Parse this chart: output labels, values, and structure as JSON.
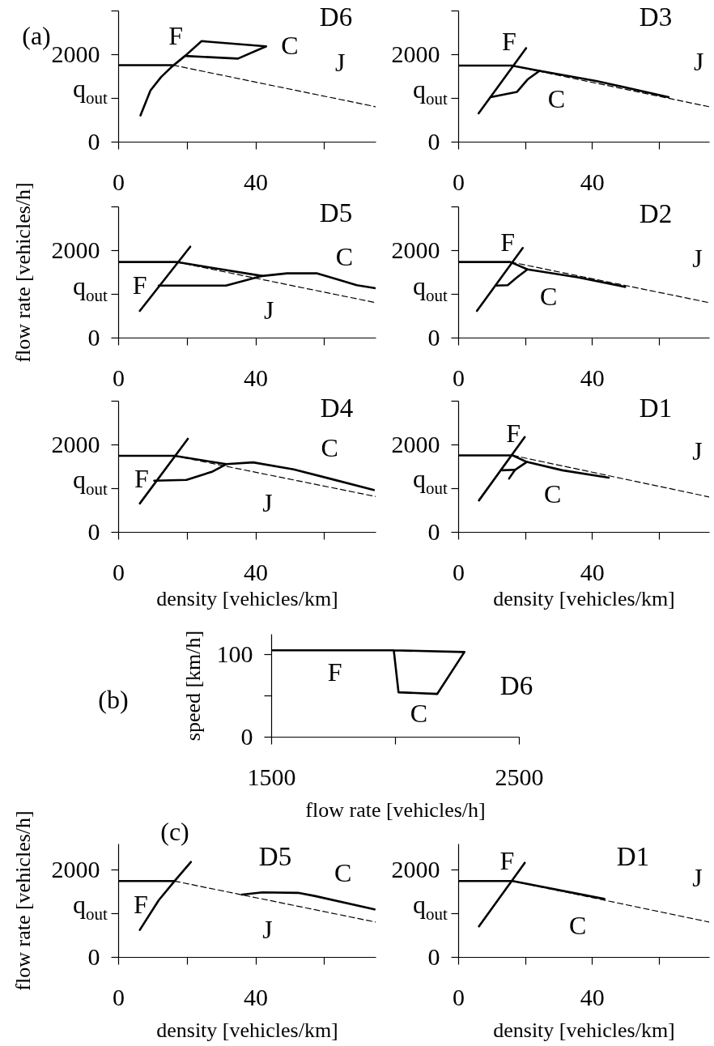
{
  "chart_data": [
    {
      "type": "line",
      "title": "D6",
      "xlim": [
        0,
        75
      ],
      "xticks": [
        0,
        {
          "value": 20,
          "label": null
        },
        40,
        {
          "value": 60,
          "label": null
        }
      ],
      "ylim": [
        0,
        3000
      ],
      "yticks": [
        0,
        {
          "value": 1000,
          "label": null
        },
        2000,
        {
          "value": 3000,
          "label": null
        }
      ],
      "series": [
        {
          "color": "#000000",
          "x": [
            6.5,
            9.4,
            12.5,
            15.7,
            19.6,
            24.3,
            43.1,
            34.9,
            19.6
          ],
          "values": [
            600,
            1170,
            1480,
            1720,
            1970,
            2300,
            2180,
            1900,
            1960
          ]
        },
        {
          "color": "#000000",
          "x": [
            16,
            75
          ],
          "values": [
            1750,
            800
          ],
          "line_style": "dashed"
        },
        {
          "color": "#000000",
          "x": [
            0,
            15.7
          ],
          "values": [
            1750,
            1750
          ]
        }
      ],
      "annotations": [
        "F",
        "C",
        "J",
        "q$_{out}$",
        "(a)"
      ]
    },
    {
      "type": "line",
      "title": "D3",
      "xlim": [
        0,
        75
      ],
      "xticks": [
        0,
        {
          "value": 20,
          "label": null
        },
        40,
        {
          "value": 60,
          "label": null
        }
      ],
      "ylim": [
        0,
        3000
      ],
      "yticks": [
        0,
        {
          "value": 1000,
          "label": null
        },
        2000,
        {
          "value": 3000,
          "label": null
        }
      ],
      "series": [
        {
          "color": "#000000",
          "x": [
            6.1,
            20.3
          ],
          "values": [
            650,
            2140
          ]
        },
        {
          "color": "#000000",
          "x": [
            0,
            16,
            24.3,
            41.2,
            62.9
          ],
          "values": [
            1740,
            1740,
            1620,
            1390,
            1020
          ]
        },
        {
          "color": "#000000",
          "x": [
            24.3,
            20.7,
            17.6,
            9.7
          ],
          "values": [
            1620,
            1420,
            1140,
            1020
          ]
        },
        {
          "color": "#000000",
          "x": [
            16,
            75
          ],
          "values": [
            1740,
            800
          ],
          "line_style": "dashed"
        }
      ],
      "annotations": [
        "F",
        "C",
        "J",
        "q$_{out}$"
      ]
    },
    {
      "type": "line",
      "title": "D5",
      "ylabel": "flow rate [vehicles/h]",
      "xlim": [
        0,
        75
      ],
      "xticks": [
        0,
        {
          "value": 20,
          "label": null
        },
        40,
        {
          "value": 60,
          "label": null
        }
      ],
      "ylim": [
        0,
        3000
      ],
      "yticks": [
        0,
        {
          "value": 1000,
          "label": null
        },
        2000,
        {
          "value": 3000,
          "label": null
        }
      ],
      "series": [
        {
          "color": "#000000",
          "x": [
            6.3,
            21
          ],
          "values": [
            610,
            2080
          ]
        },
        {
          "color": "#000000",
          "x": [
            0,
            16.9,
            42,
            49.2,
            57.8,
            64,
            69.5,
            75
          ],
          "values": [
            1730,
            1730,
            1410,
            1470,
            1470,
            1330,
            1200,
            1130
          ]
        },
        {
          "color": "#000000",
          "x": [
            11.8,
            31.4,
            42
          ],
          "values": [
            1190,
            1190,
            1410
          ]
        },
        {
          "color": "#000000",
          "x": [
            16.9,
            75
          ],
          "values": [
            1730,
            800
          ],
          "line_style": "dashed"
        }
      ],
      "annotations": [
        "F",
        "C",
        "J",
        "q$_{out}$"
      ]
    },
    {
      "type": "line",
      "title": "D2",
      "xlim": [
        0,
        75
      ],
      "xticks": [
        0,
        {
          "value": 20,
          "label": null
        },
        40,
        {
          "value": 60,
          "label": null
        }
      ],
      "ylim": [
        0,
        3000
      ],
      "yticks": [
        0,
        {
          "value": 1000,
          "label": null
        },
        2000,
        {
          "value": 3000,
          "label": null
        }
      ],
      "series": [
        {
          "color": "#000000",
          "x": [
            5.6,
            19.3
          ],
          "values": [
            610,
            2050
          ]
        },
        {
          "color": "#000000",
          "x": [
            0,
            15.6,
            20.7,
            35.7,
            49.9
          ],
          "values": [
            1730,
            1730,
            1560,
            1380,
            1160
          ]
        },
        {
          "color": "#000000",
          "x": [
            20.7,
            17.6,
            14.8,
            11.3
          ],
          "values": [
            1560,
            1380,
            1200,
            1190
          ]
        },
        {
          "color": "#000000",
          "x": [
            15.6,
            75
          ],
          "values": [
            1730,
            800
          ],
          "line_style": "dashed"
        }
      ],
      "annotations": [
        "F",
        "C",
        "J",
        "q$_{out}$"
      ]
    },
    {
      "type": "line",
      "title": "D4",
      "xlabel": "density [vehicles/km]",
      "xlim": [
        0,
        75
      ],
      "xticks": [
        0,
        {
          "value": 20,
          "label": null
        },
        40,
        {
          "value": 60,
          "label": null
        }
      ],
      "ylim": [
        0,
        3000
      ],
      "yticks": [
        0,
        {
          "value": 1000,
          "label": null
        },
        2000,
        {
          "value": 3000,
          "label": null
        }
      ],
      "series": [
        {
          "color": "#000000",
          "x": [
            6.3,
            20.3
          ],
          "values": [
            650,
            2130
          ]
        },
        {
          "color": "#000000",
          "x": [
            0,
            16.4,
            31.5,
            39.3,
            51.1,
            61.6,
            74.5
          ],
          "values": [
            1740,
            1740,
            1550,
            1590,
            1430,
            1220,
            960
          ]
        },
        {
          "color": "#000000",
          "x": [
            10.5,
            19.9,
            27.5,
            31.5
          ],
          "values": [
            1170,
            1190,
            1380,
            1550
          ]
        },
        {
          "color": "#000000",
          "x": [
            16.4,
            75
          ],
          "values": [
            1740,
            810
          ],
          "line_style": "dashed"
        }
      ],
      "annotations": [
        "F",
        "C",
        "J",
        "q$_{out}$"
      ]
    },
    {
      "type": "line",
      "title": "D1",
      "xlabel": "density [vehicles/km]",
      "xlim": [
        0,
        75
      ],
      "xticks": [
        0,
        {
          "value": 20,
          "label": null
        },
        40,
        {
          "value": 60,
          "label": null
        }
      ],
      "ylim": [
        0,
        3000
      ],
      "yticks": [
        0,
        {
          "value": 1000,
          "label": null
        },
        2000,
        {
          "value": 3000,
          "label": null
        }
      ],
      "series": [
        {
          "color": "#000000",
          "x": [
            6.2,
            19.9
          ],
          "values": [
            720,
            2170
          ]
        },
        {
          "color": "#000000",
          "x": [
            0,
            16.3,
            20.5,
            31.1,
            45
          ],
          "values": [
            1750,
            1750,
            1600,
            1410,
            1240
          ]
        },
        {
          "color": "#000000",
          "x": [
            20.5,
            17,
            15.2
          ],
          "values": [
            1600,
            1420,
            1220
          ]
        },
        {
          "color": "#000000",
          "x": [
            17,
            13.2
          ],
          "values": [
            1420,
            1410
          ]
        },
        {
          "color": "#000000",
          "x": [
            16.3,
            75
          ],
          "values": [
            1750,
            800
          ],
          "line_style": "dashed"
        }
      ],
      "annotations": [
        "F",
        "C",
        "J",
        "q$_{out}$"
      ]
    },
    {
      "type": "line",
      "title": "D6",
      "xlabel": "flow rate [vehicles/h]",
      "ylabel": "speed [km/h]",
      "xlim": [
        1500,
        2500
      ],
      "xticks": [
        1500,
        {
          "value": 2000,
          "label": null
        },
        2500
      ],
      "ylim": [
        0,
        125
      ],
      "yticks": [
        0,
        {
          "value": 50,
          "label": null
        },
        100
      ],
      "series": [
        {
          "color": "#000000",
          "x": [
            1500,
            1995,
            2280,
            2170,
            2014,
            1995
          ],
          "values": [
            105,
            105,
            103,
            52,
            54,
            105
          ]
        }
      ],
      "annotations": [
        "F",
        "C",
        "(b)"
      ]
    },
    {
      "type": "line",
      "title": "D5",
      "xlabel": "density [vehicles/km]",
      "ylabel": "flow rate [vehicles/h]",
      "xlim": [
        0,
        75
      ],
      "xticks": [
        0,
        {
          "value": 20,
          "label": null
        },
        40,
        {
          "value": 60,
          "label": null
        }
      ],
      "ylim": [
        0,
        2600
      ],
      "yticks": [
        0,
        {
          "value": 1000,
          "label": null
        },
        2000
      ],
      "series": [
        {
          "color": "#000000",
          "x": [
            6.3,
            11.8,
            16.4,
            21.2
          ],
          "values": [
            620,
            1300,
            1740,
            2180
          ]
        },
        {
          "color": "#000000",
          "x": [
            36.1,
            42,
            52.4,
            57.2,
            74.7
          ],
          "values": [
            1430,
            1480,
            1470,
            1400,
            1090
          ]
        },
        {
          "color": "#000000",
          "x": [
            16.4,
            75
          ],
          "values": [
            1740,
            800
          ],
          "line_style": "dashed"
        },
        {
          "color": "#000000",
          "x": [
            0,
            16.4
          ],
          "values": [
            1740,
            1740
          ]
        }
      ],
      "annotations": [
        "F",
        "C",
        "J",
        "q$_{out}$",
        "(c)"
      ]
    },
    {
      "type": "line",
      "title": "D1",
      "xlabel": "density [vehicles/km]",
      "xlim": [
        0,
        75
      ],
      "xticks": [
        0,
        {
          "value": 20,
          "label": null
        },
        40,
        {
          "value": 60,
          "label": null
        }
      ],
      "ylim": [
        0,
        2600
      ],
      "yticks": [
        0,
        {
          "value": 1000,
          "label": null
        },
        2000
      ],
      "series": [
        {
          "color": "#000000",
          "x": [
            6.2,
            19.9
          ],
          "values": [
            700,
            2160
          ]
        },
        {
          "color": "#000000",
          "x": [
            0,
            16.3,
            43.7
          ],
          "values": [
            1740,
            1740,
            1330
          ]
        },
        {
          "color": "#000000",
          "x": [
            16.3,
            75
          ],
          "values": [
            1740,
            800
          ],
          "line_style": "dashed"
        }
      ],
      "annotations": [
        "F",
        "C",
        "J",
        "q$_{out}$"
      ]
    }
  ]
}
